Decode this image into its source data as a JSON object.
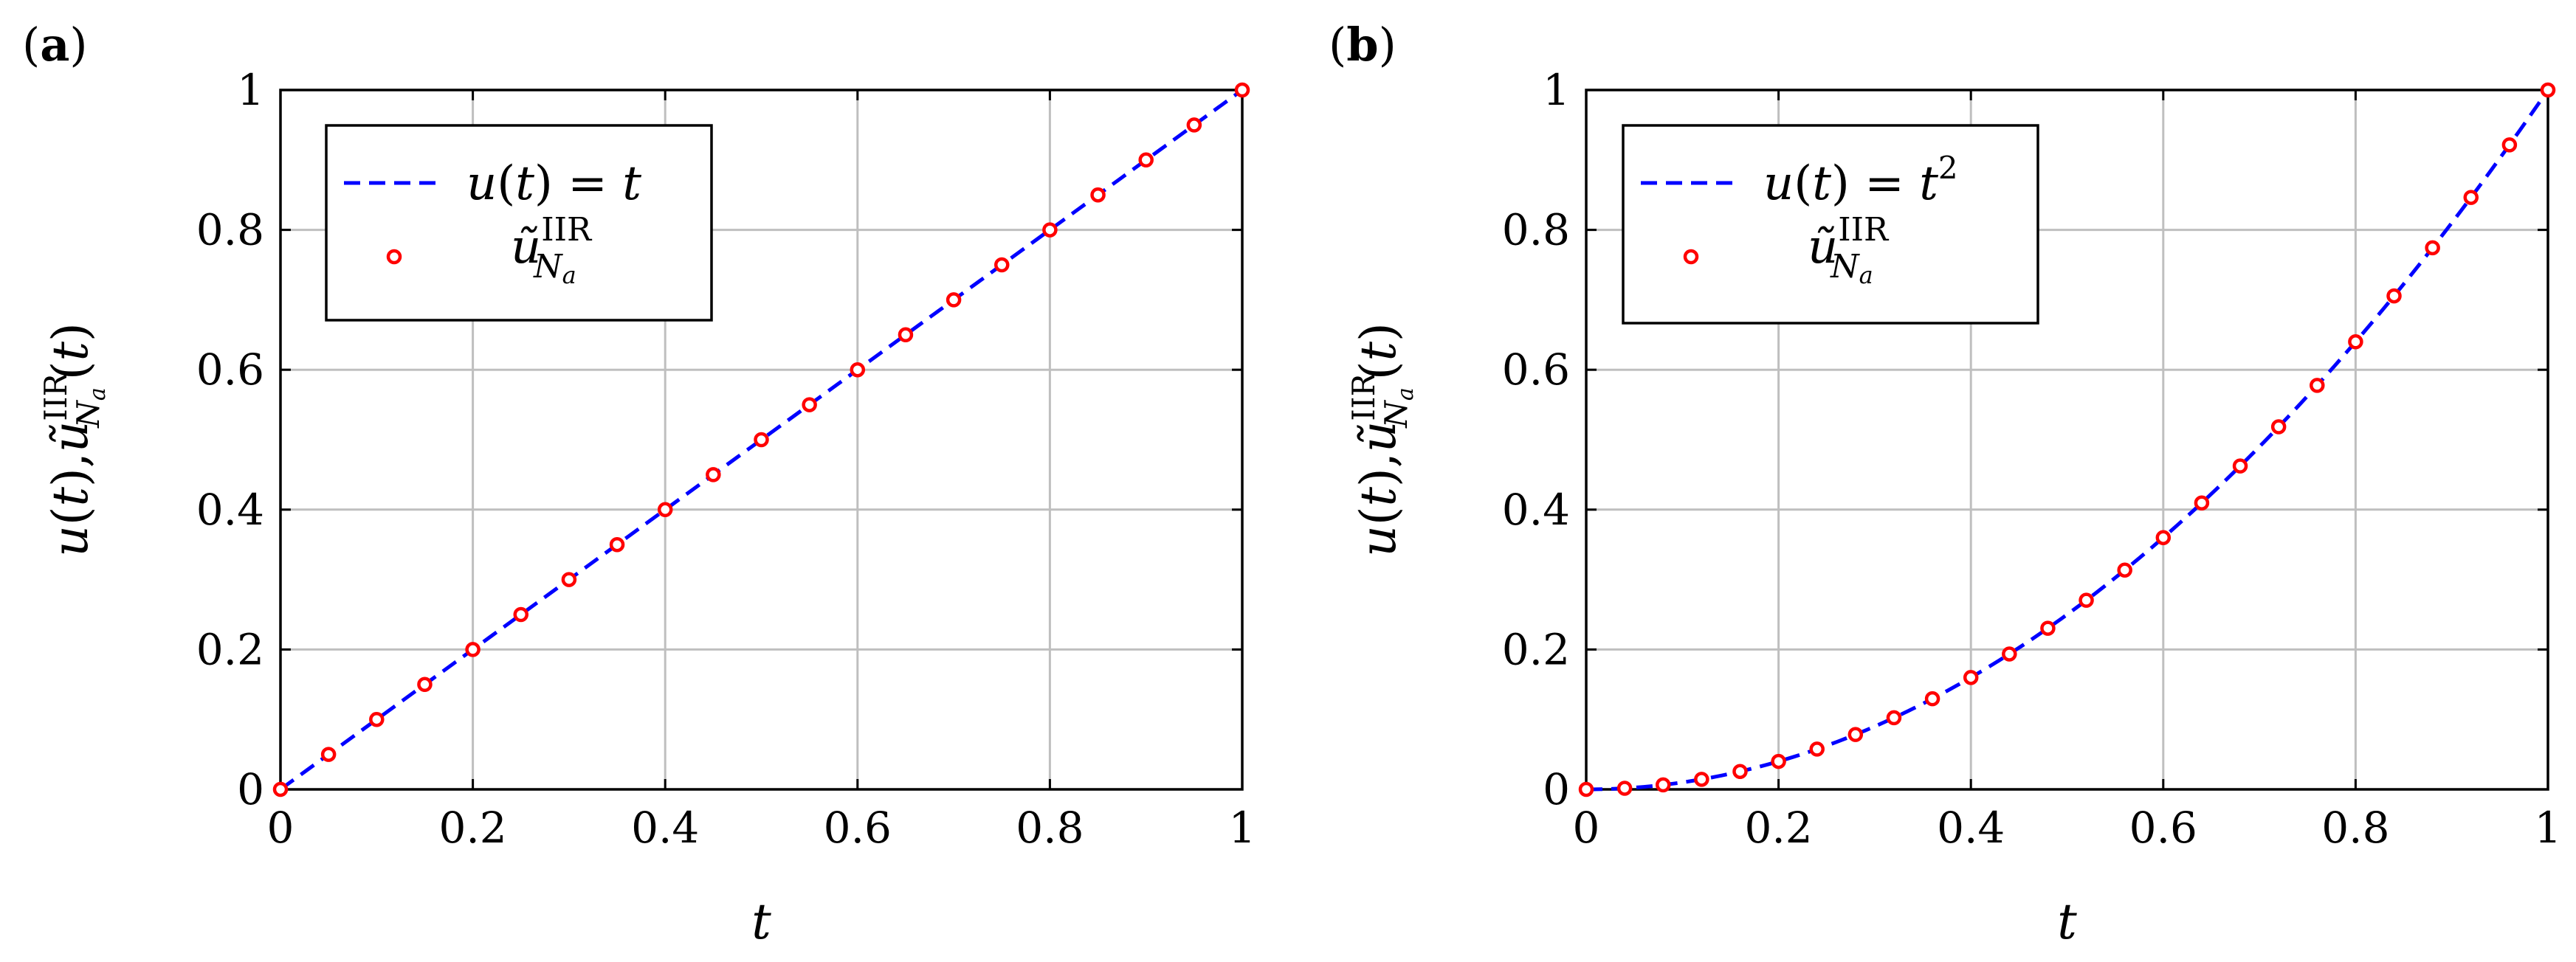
{
  "chart_data": [
    {
      "type": "line",
      "panel_label": "a",
      "xlabel": "t",
      "ylabel": "u(t), ũ_{N_a}^{IIR}(t)",
      "xlim": [
        0,
        1
      ],
      "ylim": [
        0,
        1
      ],
      "x_ticks": [
        "0",
        "0.2",
        "0.4",
        "0.6",
        "0.8",
        "1"
      ],
      "y_ticks": [
        "0",
        "0.2",
        "0.4",
        "0.6",
        "0.8",
        "1"
      ],
      "grid": true,
      "legend_position": "top-left",
      "series": [
        {
          "name": "u(t) = t",
          "style": "dashed-line",
          "color": "#0000ff",
          "function": "t"
        },
        {
          "name": "ũ_{N_a}^{IIR}",
          "style": "circle-markers",
          "color": "#ff0000",
          "x": [
            0,
            0.05,
            0.1,
            0.15,
            0.2,
            0.25,
            0.3,
            0.35,
            0.4,
            0.45,
            0.5,
            0.55,
            0.6,
            0.65,
            0.7,
            0.75,
            0.8,
            0.85,
            0.9,
            0.95,
            1
          ],
          "y": [
            0,
            0.05,
            0.1,
            0.15,
            0.2,
            0.25,
            0.3,
            0.35,
            0.4,
            0.45,
            0.5,
            0.55,
            0.6,
            0.65,
            0.7,
            0.75,
            0.8,
            0.85,
            0.9,
            0.95,
            1
          ]
        }
      ]
    },
    {
      "type": "line",
      "panel_label": "b",
      "xlabel": "t",
      "ylabel": "u(t), ũ_{N_a}^{IIR}(t)",
      "xlim": [
        0,
        1
      ],
      "ylim": [
        0,
        1
      ],
      "x_ticks": [
        "0",
        "0.2",
        "0.4",
        "0.6",
        "0.8",
        "1"
      ],
      "y_ticks": [
        "0",
        "0.2",
        "0.4",
        "0.6",
        "0.8",
        "1"
      ],
      "grid": true,
      "legend_position": "top-left",
      "series": [
        {
          "name": "u(t) = t^2",
          "style": "dashed-line",
          "color": "#0000ff",
          "function": "t^2"
        },
        {
          "name": "ũ_{N_a}^{IIR}",
          "style": "circle-markers",
          "color": "#ff0000",
          "x": [
            0,
            0.04,
            0.08,
            0.12,
            0.16,
            0.2,
            0.24,
            0.28,
            0.32,
            0.36,
            0.4,
            0.44,
            0.48,
            0.52,
            0.56,
            0.6,
            0.64,
            0.68,
            0.72,
            0.76,
            0.8,
            0.84,
            0.88,
            0.92,
            0.96,
            1
          ],
          "y": [
            0,
            0.0016,
            0.0064,
            0.0144,
            0.0256,
            0.04,
            0.0576,
            0.0784,
            0.1024,
            0.1296,
            0.16,
            0.1936,
            0.2304,
            0.2704,
            0.3136,
            0.36,
            0.4096,
            0.4624,
            0.5184,
            0.5776,
            0.64,
            0.7056,
            0.7744,
            0.8464,
            0.9216,
            1
          ]
        }
      ]
    }
  ]
}
